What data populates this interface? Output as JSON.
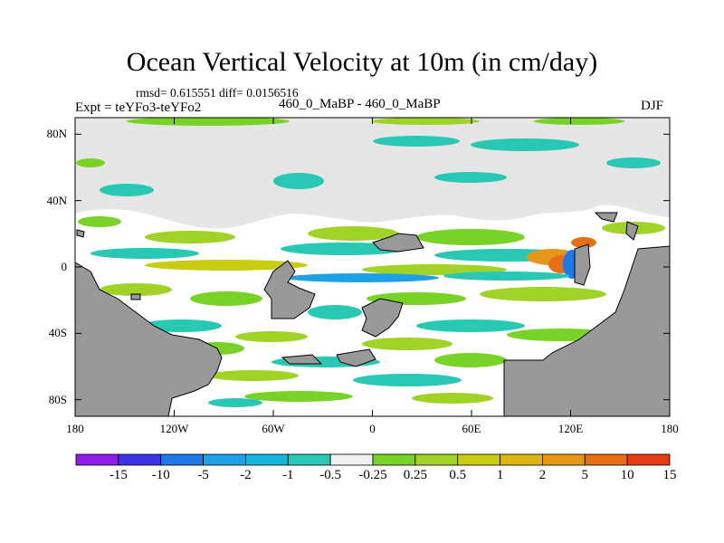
{
  "title": "Ocean Vertical Velocity at 10m (in cm/day)",
  "stats_line": "rmsd= 0.615551 diff= 0.0156516",
  "left_label": "Expt = teYFo3-teYFo2",
  "center_label": "460_0_MaBP - 460_0_MaBP",
  "right_label": "DJF",
  "lat_ticks": [
    {
      "label": "80N",
      "value": 80
    },
    {
      "label": "40N",
      "value": 40
    },
    {
      "label": "0",
      "value": 0
    },
    {
      "label": "40S",
      "value": -40
    },
    {
      "label": "80S",
      "value": -80
    }
  ],
  "lon_ticks": [
    {
      "label": "180",
      "value": -180
    },
    {
      "label": "120W",
      "value": -120
    },
    {
      "label": "60W",
      "value": -60
    },
    {
      "label": "0",
      "value": 0
    },
    {
      "label": "60E",
      "value": 60
    },
    {
      "label": "120E",
      "value": 120
    },
    {
      "label": "180",
      "value": 180
    }
  ],
  "colorbar": {
    "colors": [
      "#8c1ee6",
      "#3c32e6",
      "#1e78e6",
      "#1ea0e6",
      "#14b4dc",
      "#28c8b4",
      "#f0f0f0",
      "#78d228",
      "#a0d228",
      "#c8cd14",
      "#dcb414",
      "#e69614",
      "#e66e14",
      "#e63c14"
    ],
    "labels": [
      "-15",
      "-10",
      "-5",
      "-2",
      "-1",
      "-0.5",
      "-0.25",
      "0.25",
      "0.5",
      "1",
      "2",
      "5",
      "10",
      "15"
    ]
  },
  "colors": {
    "land": "#999999",
    "no_data": "#e6e6e6",
    "neutral": "#ffffff"
  }
}
